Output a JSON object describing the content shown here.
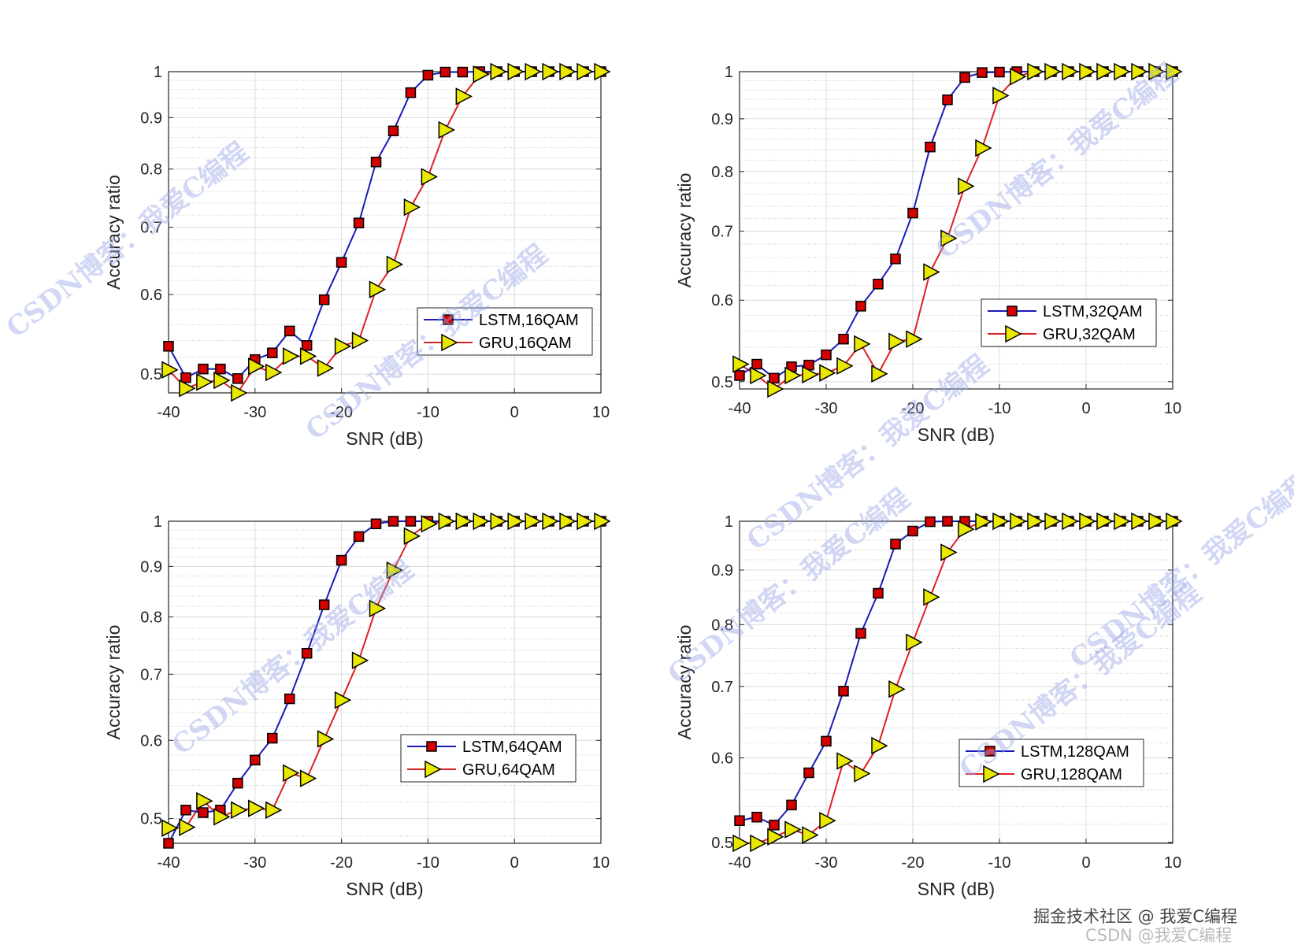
{
  "colors": {
    "lstm_line": "#1a1ab8",
    "lstm_marker": "#d40000",
    "gru_line": "#e02020",
    "gru_marker": "#e8e800",
    "grid": "#dcdcdc"
  },
  "watermarks": {
    "diagonal": "CSDN博客：我爱C编程",
    "credit_juejin": "掘金技术社区 @ 我爱C编程",
    "credit_csdn": "CSDN @我爱C编程"
  },
  "chart_data": [
    {
      "type": "line",
      "xlabel": "SNR (dB)",
      "ylabel": "Accuracy ratio",
      "yscale": "log",
      "xlim": [
        -40,
        10
      ],
      "ylim": [
        0.479,
        1
      ],
      "grid": true,
      "legend": "center-right",
      "xticks": [
        "-40",
        "-30",
        "-20",
        "-10",
        "0",
        "10"
      ],
      "yticks": [
        "0.5",
        "0.6",
        "0.7",
        "0.8",
        "0.9",
        "1"
      ],
      "x": [
        -40,
        -38,
        -36,
        -34,
        -32,
        -30,
        -28,
        -26,
        -24,
        -22,
        -20,
        -18,
        -16,
        -14,
        -12,
        -10,
        -8,
        -6,
        -4,
        -2,
        0,
        2,
        4,
        6,
        8,
        10
      ],
      "series": [
        {
          "name": "LSTM,16QAM",
          "marker": "square",
          "values": [
            0.533,
            0.496,
            0.506,
            0.506,
            0.495,
            0.517,
            0.525,
            0.552,
            0.534,
            0.593,
            0.646,
            0.707,
            0.813,
            0.873,
            0.953,
            0.992,
            0.999,
            0.999,
            1,
            1,
            1,
            1,
            1,
            1,
            1,
            1
          ]
        },
        {
          "name": "GRU,16QAM",
          "marker": "triangle-right",
          "values": [
            0.505,
            0.484,
            0.491,
            0.493,
            0.479,
            0.509,
            0.502,
            0.521,
            0.521,
            0.507,
            0.533,
            0.54,
            0.607,
            0.643,
            0.733,
            0.786,
            0.875,
            0.945,
            0.994,
            1,
            1,
            1,
            1,
            1,
            1,
            1
          ]
        }
      ]
    },
    {
      "type": "line",
      "xlabel": "SNR (dB)",
      "ylabel": "Accuracy ratio",
      "yscale": "log",
      "xlim": [
        -40,
        10
      ],
      "ylim": [
        0.492,
        1
      ],
      "grid": true,
      "legend": "center-right",
      "xticks": [
        "-40",
        "-30",
        "-20",
        "-10",
        "0",
        "10"
      ],
      "yticks": [
        "0.5",
        "0.6",
        "0.7",
        "0.8",
        "0.9",
        "1"
      ],
      "x": [
        -40,
        -38,
        -36,
        -34,
        -32,
        -30,
        -28,
        -26,
        -24,
        -22,
        -20,
        -18,
        -16,
        -14,
        -12,
        -10,
        -8,
        -6,
        -4,
        -2,
        0,
        2,
        4,
        6,
        8,
        10
      ],
      "series": [
        {
          "name": "LSTM,32QAM",
          "marker": "square",
          "values": [
            0.507,
            0.52,
            0.504,
            0.517,
            0.519,
            0.531,
            0.55,
            0.592,
            0.622,
            0.658,
            0.729,
            0.845,
            0.939,
            0.987,
            0.998,
            0.999,
            1,
            1,
            1,
            1,
            1,
            1,
            1,
            1,
            1,
            1
          ]
        },
        {
          "name": "GRU,32QAM",
          "marker": "triangle-right",
          "values": [
            0.52,
            0.507,
            0.492,
            0.507,
            0.508,
            0.51,
            0.518,
            0.544,
            0.509,
            0.547,
            0.55,
            0.639,
            0.689,
            0.774,
            0.843,
            0.948,
            0.989,
            1,
            1,
            1,
            1,
            1,
            1,
            1,
            1,
            1
          ]
        }
      ]
    },
    {
      "type": "line",
      "xlabel": "SNR (dB)",
      "ylabel": "Accuracy ratio",
      "yscale": "log",
      "xlim": [
        -40,
        10
      ],
      "ylim": [
        0.472,
        1
      ],
      "grid": true,
      "legend": "center-right",
      "xticks": [
        "-40",
        "-30",
        "-20",
        "-10",
        "0",
        "10"
      ],
      "yticks": [
        "0.5",
        "0.6",
        "0.7",
        "0.8",
        "0.9",
        "1"
      ],
      "x": [
        -40,
        -38,
        -36,
        -34,
        -32,
        -30,
        -28,
        -26,
        -24,
        -22,
        -20,
        -18,
        -16,
        -14,
        -12,
        -10,
        -8,
        -6,
        -4,
        -2,
        0,
        2,
        4,
        6,
        8,
        10
      ],
      "series": [
        {
          "name": "LSTM,64QAM",
          "marker": "square",
          "values": [
            0.472,
            0.51,
            0.507,
            0.51,
            0.543,
            0.573,
            0.603,
            0.661,
            0.735,
            0.823,
            0.913,
            0.965,
            0.994,
            1,
            1,
            1,
            1,
            1,
            1,
            1,
            1,
            1,
            1,
            1,
            1,
            1
          ]
        },
        {
          "name": "GRU,64QAM",
          "marker": "triangle-right",
          "values": [
            0.489,
            0.49,
            0.521,
            0.502,
            0.51,
            0.512,
            0.51,
            0.556,
            0.549,
            0.602,
            0.659,
            0.723,
            0.816,
            0.892,
            0.966,
            0.994,
            1,
            1,
            1,
            1,
            1,
            1,
            1,
            1,
            1,
            1
          ]
        }
      ]
    },
    {
      "type": "line",
      "xlabel": "SNR (dB)",
      "ylabel": "Accuracy ratio",
      "yscale": "log",
      "xlim": [
        -40,
        10
      ],
      "ylim": [
        0.499,
        1
      ],
      "grid": true,
      "legend": "center-right",
      "xticks": [
        "-40",
        "-30",
        "-20",
        "-10",
        "0",
        "10"
      ],
      "yticks": [
        "0.5",
        "0.6",
        "0.7",
        "0.8",
        "0.9",
        "1"
      ],
      "x": [
        -40,
        -38,
        -36,
        -34,
        -32,
        -30,
        -28,
        -26,
        -24,
        -22,
        -20,
        -18,
        -16,
        -14,
        -12,
        -10,
        -8,
        -6,
        -4,
        -2,
        0,
        2,
        4,
        6,
        8,
        10
      ],
      "series": [
        {
          "name": "LSTM,128QAM",
          "marker": "square",
          "values": [
            0.524,
            0.528,
            0.519,
            0.542,
            0.581,
            0.622,
            0.693,
            0.785,
            0.856,
            0.952,
            0.979,
            0.999,
            1,
            1,
            1,
            1,
            1,
            1,
            1,
            1,
            1,
            1,
            1,
            1,
            1,
            1
          ]
        },
        {
          "name": "GRU,128QAM",
          "marker": "triangle-right",
          "values": [
            0.499,
            0.499,
            0.506,
            0.514,
            0.508,
            0.524,
            0.596,
            0.58,
            0.616,
            0.696,
            0.77,
            0.849,
            0.935,
            0.983,
            0.999,
            1,
            1,
            1,
            1,
            1,
            1,
            1,
            1,
            1,
            1,
            1
          ]
        }
      ]
    }
  ]
}
